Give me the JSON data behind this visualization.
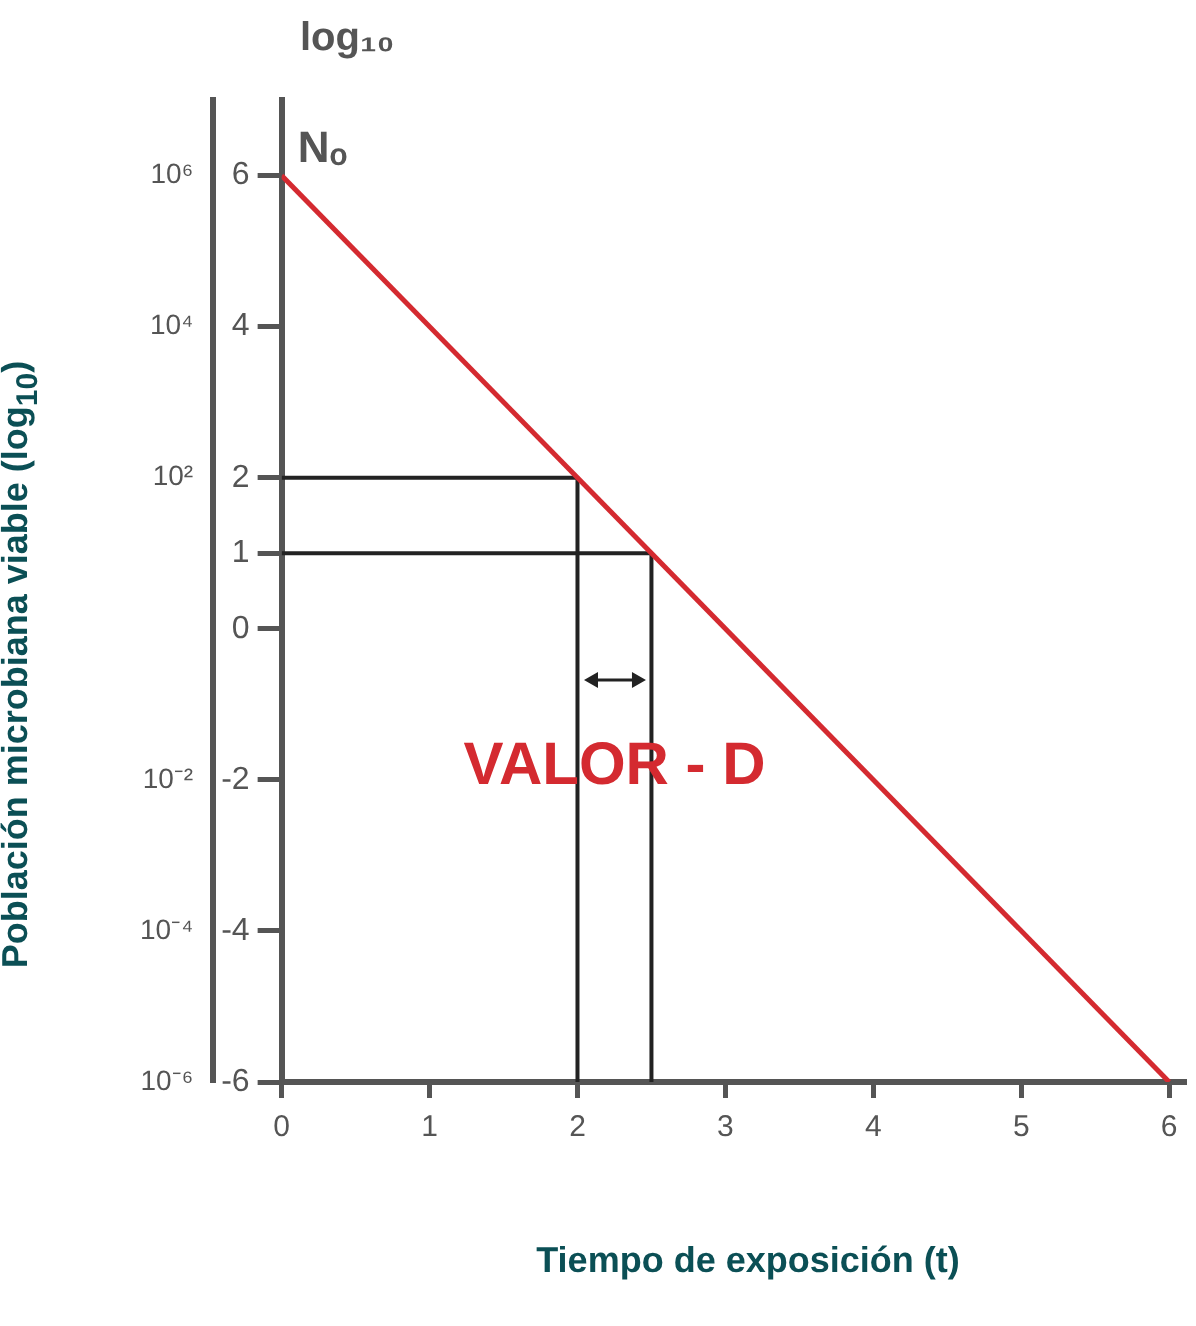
{
  "chart_data": {
    "type": "line",
    "xlabel": "Tiempo de exposición (t)",
    "ylabel": "log₁₀",
    "y2label": "Población microbiana viable (log$_{10}$)",
    "xlim": [
      0,
      6.1
    ],
    "xticks": [
      0,
      1,
      2,
      3,
      4,
      5,
      6
    ],
    "ylim": [
      -6,
      7
    ],
    "yticks": [
      6,
      4,
      2,
      1,
      0,
      -2,
      -4,
      -6
    ],
    "y2lim": [
      1e-06,
      10000000
    ],
    "log": "y2",
    "y2ticks": [
      {
        "value": 1000000,
        "label": "10⁶"
      },
      {
        "value": 10000,
        "label": "10⁴"
      },
      {
        "value": 100,
        "label": "10²"
      },
      {
        "value": 0.01,
        "label": "10⁻²"
      },
      {
        "value": 0.0001,
        "label": "10⁻⁴"
      },
      {
        "value": 1e-06,
        "label": "10⁻⁶"
      }
    ],
    "series": [
      {
        "color": "#d42a30",
        "x": [
          0,
          6
        ],
        "values": [
          6,
          -6
        ]
      },
      {
        "color": "#222222",
        "x": [
          0,
          2,
          2
        ],
        "values": [
          2,
          2,
          -6
        ]
      },
      {
        "color": "#222222",
        "x": [
          0,
          2.5,
          2.5
        ],
        "values": [
          1,
          1,
          -6
        ]
      }
    ],
    "annotations": [
      {
        "text": "Nₒ",
        "x": 0,
        "y": 6
      },
      "VALOR - D"
    ],
    "grid": false,
    "legend": false,
    "marker": "none",
    "line_style": "solid"
  }
}
